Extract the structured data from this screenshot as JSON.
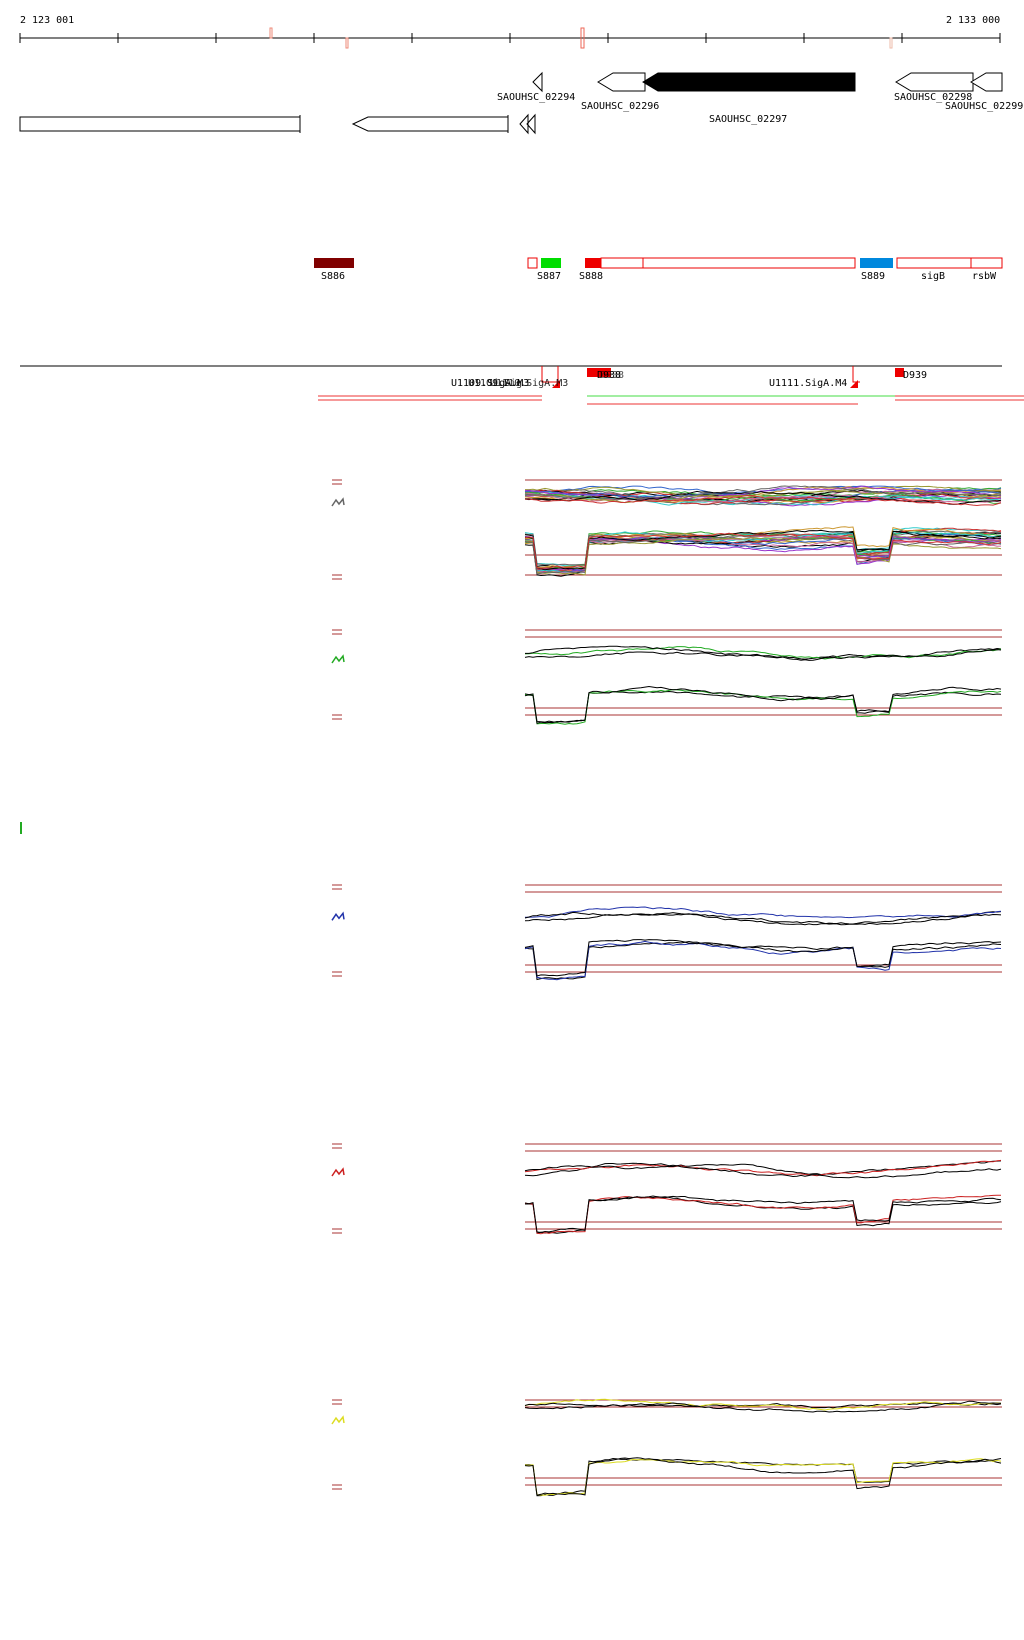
{
  "ruler": {
    "start_label": "2 123 001",
    "end_label": "2 133 000"
  },
  "genes": [
    {
      "id": "g1",
      "label": "SAOUHSC_02294"
    },
    {
      "id": "g2",
      "label": "SAOUHSC_02296"
    },
    {
      "id": "g3",
      "label": "SAOUHSC_02297"
    },
    {
      "id": "g4",
      "label": "SAOUHSC_02298"
    },
    {
      "id": "g5",
      "label": "SAOUHSC_02299"
    }
  ],
  "features": [
    {
      "label": "S886",
      "color": "#800000"
    },
    {
      "label": "S887",
      "color": "#00dd00"
    },
    {
      "label": "S888",
      "color": "#ee0000"
    },
    {
      "label": "S889",
      "color": "#0088dd"
    },
    {
      "label": "sigB",
      "color": "#ee0000"
    },
    {
      "label": "rsbW",
      "color": "#ee0000"
    }
  ],
  "promoters": {
    "labels": [
      "U1109.Sig",
      "U1110.SigA.M3",
      "D938",
      "U1111.SigA.M4",
      "D939"
    ],
    "overlap_label_1": "U1109.SigA.M3",
    "overlap_label_2": "D938"
  },
  "tracks": [
    {
      "name": "multi-condition-track",
      "colors": [
        "#000000",
        "#cc3333",
        "#33aa33",
        "#3366cc",
        "#cc9933",
        "#9933cc",
        "#33cccc",
        "#cc6699",
        "#999933",
        "#666666"
      ]
    },
    {
      "name": "green-track",
      "colors": [
        "#000000",
        "#22aa22"
      ]
    },
    {
      "name": "blue-track",
      "colors": [
        "#000000",
        "#2233aa"
      ]
    },
    {
      "name": "red-track",
      "colors": [
        "#000000",
        "#cc2222"
      ]
    },
    {
      "name": "yellow-track",
      "colors": [
        "#000000",
        "#dddd22"
      ]
    }
  ],
  "guide_color": "#aa3333"
}
